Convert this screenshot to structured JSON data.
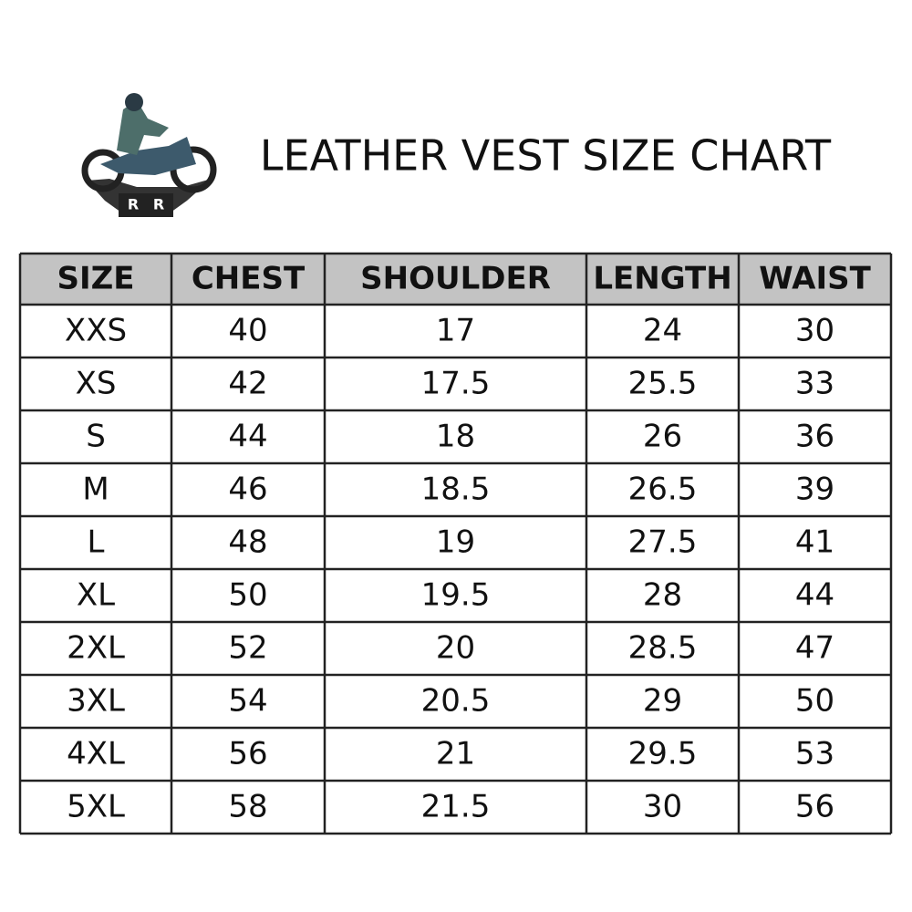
{
  "header": {
    "title": "LEATHER VEST SIZE CHART",
    "logo": [
      "R",
      "R"
    ]
  },
  "table": {
    "columns": [
      "SIZE",
      "CHEST",
      "SHOULDER",
      "LENGTH",
      "WAIST"
    ],
    "rows": [
      [
        "XXS",
        40,
        17,
        24,
        30
      ],
      [
        "XS",
        42,
        17.5,
        25.5,
        33
      ],
      [
        "S",
        44,
        18,
        26,
        36
      ],
      [
        "M",
        46,
        18.5,
        26.5,
        39
      ],
      [
        "L",
        48,
        19,
        27.5,
        41
      ],
      [
        "XL",
        50,
        19.5,
        28,
        44
      ],
      [
        "2XL",
        52,
        20,
        28.5,
        47
      ],
      [
        "3XL",
        54,
        20.5,
        29,
        50
      ],
      [
        "4XL",
        56,
        21,
        29.5,
        53
      ],
      [
        "5XL",
        58,
        21.5,
        30,
        56
      ]
    ]
  }
}
